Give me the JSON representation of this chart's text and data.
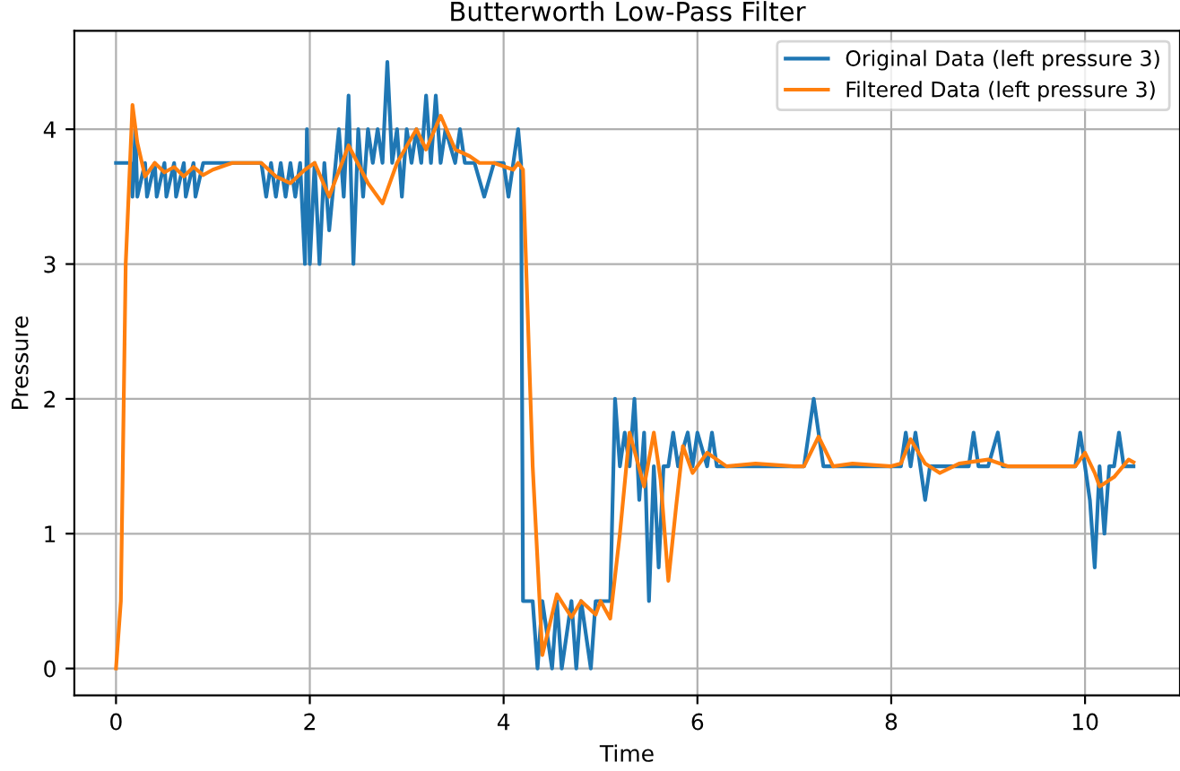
{
  "chart_data": {
    "type": "line",
    "title": "Butterworth Low-Pass Filter",
    "xlabel": "Time",
    "ylabel": "Pressure",
    "xlim": [
      -0.43,
      10.98
    ],
    "ylim": [
      -0.2,
      4.73
    ],
    "xticks": [
      0,
      2,
      4,
      6,
      8,
      10
    ],
    "yticks": [
      0,
      1,
      2,
      3,
      4
    ],
    "grid": true,
    "legend": "top right",
    "series": [
      {
        "name": "Original Data (left pressure 3)",
        "color": "#1f77b4",
        "x": [
          0,
          0.15,
          0.17,
          0.2,
          0.22,
          0.3,
          0.32,
          0.4,
          0.42,
          0.5,
          0.52,
          0.6,
          0.62,
          0.7,
          0.72,
          0.8,
          0.82,
          0.9,
          1.5,
          1.55,
          1.6,
          1.65,
          1.7,
          1.75,
          1.8,
          1.85,
          1.9,
          1.95,
          1.97,
          2.0,
          2.05,
          2.1,
          2.15,
          2.2,
          2.3,
          2.35,
          2.4,
          2.45,
          2.5,
          2.55,
          2.6,
          2.65,
          2.7,
          2.75,
          2.8,
          2.85,
          2.9,
          2.95,
          3.0,
          3.05,
          3.1,
          3.15,
          3.2,
          3.25,
          3.3,
          3.35,
          3.4,
          3.5,
          3.55,
          3.6,
          3.7,
          3.8,
          3.9,
          4.0,
          4.05,
          4.1,
          4.15,
          4.18,
          4.2,
          4.3,
          4.35,
          4.4,
          4.5,
          4.55,
          4.6,
          4.7,
          4.75,
          4.8,
          4.9,
          4.95,
          5.0,
          5.1,
          5.15,
          5.2,
          5.25,
          5.3,
          5.35,
          5.4,
          5.45,
          5.5,
          5.55,
          5.6,
          5.65,
          5.7,
          5.75,
          5.8,
          5.9,
          5.95,
          6.0,
          6.1,
          6.15,
          6.2,
          6.3,
          7.1,
          7.15,
          7.2,
          7.25,
          7.3,
          8.1,
          8.15,
          8.2,
          8.25,
          8.3,
          8.35,
          8.4,
          8.8,
          8.85,
          8.9,
          9.0,
          9.1,
          9.15,
          9.2,
          9.9,
          9.95,
          10.0,
          10.05,
          10.1,
          10.15,
          10.2,
          10.25,
          10.3,
          10.35,
          10.4,
          10.5
        ],
        "values": [
          3.75,
          3.75,
          3.5,
          4.0,
          3.5,
          3.75,
          3.5,
          3.75,
          3.5,
          3.75,
          3.5,
          3.75,
          3.5,
          3.75,
          3.5,
          3.75,
          3.5,
          3.75,
          3.75,
          3.5,
          3.75,
          3.5,
          3.75,
          3.5,
          3.75,
          3.5,
          3.75,
          3.0,
          4.0,
          3.0,
          3.75,
          3.0,
          3.75,
          3.25,
          4.0,
          3.5,
          4.25,
          3.0,
          4.0,
          3.5,
          4.0,
          3.75,
          4.0,
          3.75,
          4.5,
          3.75,
          4.0,
          3.5,
          4.0,
          3.75,
          4.0,
          3.75,
          4.25,
          3.75,
          4.25,
          3.75,
          4.0,
          3.75,
          4.0,
          3.75,
          3.75,
          3.5,
          3.75,
          3.75,
          3.5,
          3.75,
          4.0,
          3.75,
          0.5,
          0.5,
          0.0,
          0.5,
          0.0,
          0.5,
          0.0,
          0.5,
          0.0,
          0.5,
          0.0,
          0.5,
          0.5,
          0.5,
          2.0,
          1.5,
          1.75,
          1.5,
          2.0,
          1.25,
          1.75,
          0.5,
          1.5,
          0.75,
          1.5,
          1.5,
          1.75,
          1.5,
          1.75,
          1.5,
          1.75,
          1.5,
          1.75,
          1.5,
          1.5,
          1.5,
          1.75,
          2.0,
          1.75,
          1.5,
          1.5,
          1.75,
          1.5,
          1.75,
          1.5,
          1.25,
          1.5,
          1.5,
          1.75,
          1.5,
          1.5,
          1.75,
          1.5,
          1.5,
          1.5,
          1.75,
          1.5,
          1.25,
          0.75,
          1.5,
          1.0,
          1.5,
          1.5,
          1.75,
          1.5,
          1.5
        ]
      },
      {
        "name": "Filtered Data (left pressure 3)",
        "color": "#ff7f0e",
        "x": [
          0,
          0.05,
          0.1,
          0.17,
          0.22,
          0.3,
          0.4,
          0.5,
          0.6,
          0.7,
          0.8,
          0.9,
          1.0,
          1.2,
          1.5,
          1.65,
          1.8,
          1.95,
          2.05,
          2.2,
          2.4,
          2.6,
          2.75,
          2.9,
          3.1,
          3.2,
          3.35,
          3.5,
          3.65,
          3.75,
          3.9,
          4.1,
          4.15,
          4.2,
          4.3,
          4.4,
          4.55,
          4.7,
          4.8,
          4.95,
          5.0,
          5.1,
          5.2,
          5.3,
          5.45,
          5.55,
          5.62,
          5.7,
          5.78,
          5.85,
          5.95,
          6.1,
          6.3,
          6.6,
          7.0,
          7.1,
          7.25,
          7.4,
          7.6,
          8.0,
          8.1,
          8.2,
          8.35,
          8.5,
          8.7,
          9.0,
          9.2,
          9.5,
          9.9,
          10.0,
          10.1,
          10.15,
          10.3,
          10.45,
          10.5
        ],
        "values": [
          0.0,
          0.5,
          3.0,
          4.18,
          3.9,
          3.65,
          3.75,
          3.68,
          3.72,
          3.65,
          3.72,
          3.66,
          3.7,
          3.75,
          3.75,
          3.65,
          3.6,
          3.7,
          3.75,
          3.5,
          3.88,
          3.6,
          3.45,
          3.75,
          4.0,
          3.85,
          4.1,
          3.85,
          3.8,
          3.75,
          3.75,
          3.7,
          3.75,
          3.7,
          1.5,
          0.1,
          0.55,
          0.38,
          0.5,
          0.4,
          0.5,
          0.37,
          1.0,
          1.75,
          1.35,
          1.75,
          1.4,
          0.65,
          1.2,
          1.65,
          1.45,
          1.6,
          1.5,
          1.52,
          1.5,
          1.5,
          1.72,
          1.5,
          1.52,
          1.5,
          1.52,
          1.7,
          1.52,
          1.45,
          1.52,
          1.55,
          1.5,
          1.5,
          1.5,
          1.6,
          1.45,
          1.35,
          1.42,
          1.55,
          1.53
        ]
      }
    ]
  }
}
